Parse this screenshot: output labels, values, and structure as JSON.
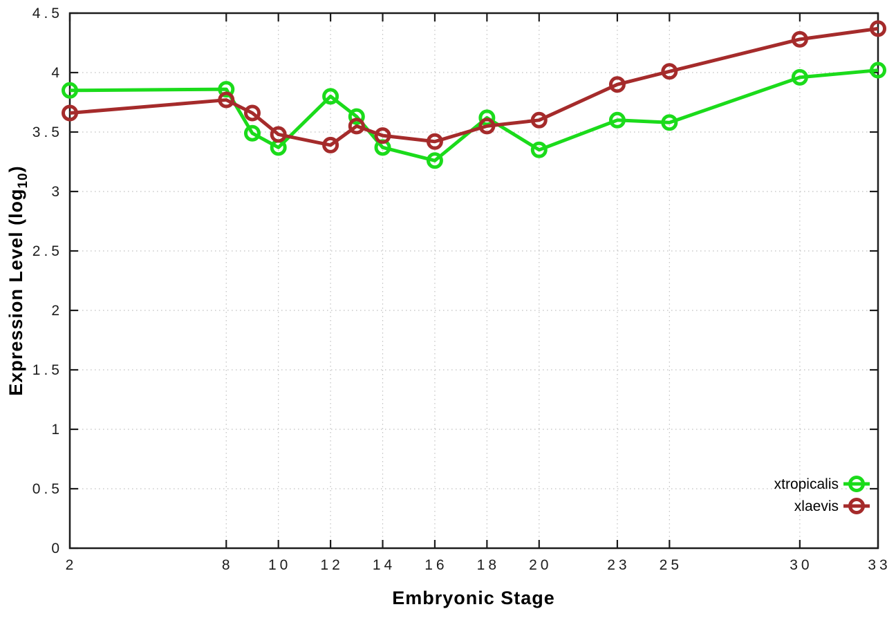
{
  "chart_data": {
    "type": "line",
    "title": "",
    "xlabel": "Embryonic Stage",
    "ylabel": "Expression Level (log10)",
    "ylabel_parts": {
      "prefix": "Expression Level (log",
      "subscript": "10",
      "suffix": ")"
    },
    "xlim": [
      2,
      33
    ],
    "ylim": [
      0,
      4.5
    ],
    "x_tick_labels": [
      "2",
      "8",
      "10",
      "12",
      "14",
      "16",
      "18",
      "20",
      "23",
      "25",
      "30",
      "33"
    ],
    "x_tick_values": [
      2,
      8,
      10,
      12,
      14,
      16,
      18,
      20,
      23,
      25,
      30,
      33
    ],
    "y_tick_labels": [
      "0",
      "0.5",
      "1",
      "1.5",
      "2",
      "2.5",
      "3",
      "3.5",
      "4",
      "4.5"
    ],
    "y_tick_values": [
      0,
      0.5,
      1,
      1.5,
      2,
      2.5,
      3,
      3.5,
      4,
      4.5
    ],
    "grid": true,
    "legend_position": "bottom-right-inside",
    "marker": "open-circle",
    "x": [
      2,
      8,
      9,
      10,
      12,
      13,
      14,
      16,
      18,
      20,
      23,
      25,
      30,
      33
    ],
    "series": [
      {
        "name": "xtropicalis",
        "color": "#1bdb1b",
        "values": [
          3.85,
          3.86,
          3.49,
          3.37,
          3.8,
          3.63,
          3.37,
          3.26,
          3.62,
          3.35,
          3.6,
          3.58,
          3.96,
          4.02
        ]
      },
      {
        "name": "xlaevis",
        "color": "#a52b2b",
        "values": [
          3.66,
          3.77,
          3.66,
          3.48,
          3.39,
          3.55,
          3.47,
          3.42,
          3.55,
          3.6,
          3.9,
          4.01,
          4.28,
          4.37
        ]
      }
    ],
    "colors": {
      "background": "#ffffff",
      "grid": "#bfbfbf",
      "axis": "#1c1c1c",
      "text": "#000000"
    }
  }
}
